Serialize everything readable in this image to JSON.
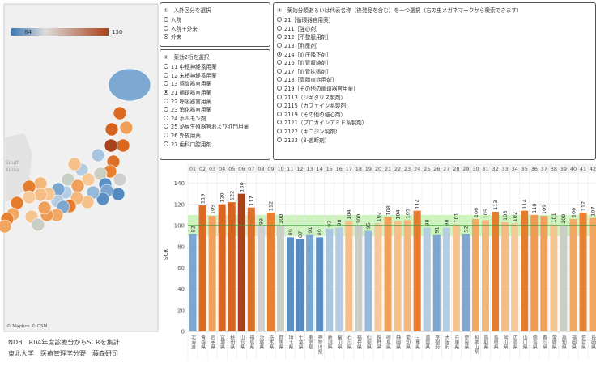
{
  "map": {
    "legend_min": 84,
    "legend_max": 130,
    "attribution": "© Mapbox © OSM",
    "labels": [
      "South",
      "Korea"
    ],
    "caption": [
      "NDB　R04年度診療分からSCRを集計",
      "東北大学　医療管理学分野　藤森研司"
    ]
  },
  "filter1": {
    "title": "①　入外区分を選択",
    "options": [
      "入院",
      "入院＋外来",
      "外来"
    ],
    "selected": 2
  },
  "filter2": {
    "title": "②　薬効2桁を選択",
    "options": [
      "11 中枢神経系用薬",
      "12 末梢神経系用薬",
      "13 感覚器官用薬",
      "21 循環器官用薬",
      "22 呼吸器官用薬",
      "23 消化器官用薬",
      "24 ホルモン剤",
      "25 泌尿生殖器官および肛門用薬",
      "26 外皮用薬",
      "27 歯科口腔用剤"
    ],
    "selected": 3
  },
  "filter3": {
    "title": "③　薬効分類あるいは代表名称（後発品を含む）を一つ選択（右の虫メガネマークから検索できます）",
    "options": [
      "21［循環器官用薬］",
      "211［強心剤］",
      "212［不整脈用剤］",
      "213［利尿剤］",
      "214［血圧降下剤］",
      "216［血管収縮剤］",
      "217［血管拡張剤］",
      "218［高脂血症用剤］",
      "219［その他の循環器官用薬］",
      "2113（ジギタリス製剤）",
      "2115（カフェイン系製剤）",
      "2119（その他の強心剤）",
      "2121（プロカインアミド系製剤）",
      "2122（キニジン製剤）",
      "2123（β-遮断剤）"
    ],
    "selected": 4
  },
  "chart_data": {
    "type": "bar",
    "y_label": "SCR",
    "categories": [
      "01",
      "02",
      "03",
      "04",
      "05",
      "06",
      "07",
      "08",
      "09",
      "10",
      "11",
      "12",
      "13",
      "14",
      "15",
      "16",
      "17",
      "18",
      "19",
      "20",
      "21",
      "22",
      "23",
      "24",
      "25",
      "26",
      "27",
      "28",
      "29",
      "30",
      "31",
      "32",
      "33",
      "34",
      "35",
      "36",
      "37",
      "38",
      "39",
      "40",
      "41",
      "42"
    ],
    "names": [
      "北海道",
      "青森県",
      "岩手県",
      "宮城県",
      "秋田県",
      "山形県",
      "福島県",
      "茨城県",
      "栃木県",
      "群馬県",
      "埼玉県",
      "千葉県",
      "東京都",
      "神奈川県",
      "新潟県",
      "富山県",
      "石川県",
      "福井県",
      "山梨県",
      "長野県",
      "岐阜県",
      "静岡県",
      "愛知県",
      "三重県",
      "滋賀県",
      "京都府",
      "大阪府",
      "兵庫県",
      "奈良県",
      "和歌山県",
      "鳥取県",
      "島根県",
      "岡山県",
      "広島県",
      "山口県",
      "徳島県",
      "香川県",
      "愛媛県",
      "高知県",
      "福岡県",
      "佐賀県",
      "長崎県"
    ],
    "values": [
      92,
      119,
      109,
      120,
      122,
      130,
      117,
      99,
      112,
      100,
      89,
      87,
      91,
      89,
      97,
      98,
      104,
      100,
      95,
      102,
      108,
      104,
      105,
      114,
      98,
      91,
      98,
      101,
      92,
      106,
      105,
      113,
      103,
      102,
      114,
      110,
      109,
      101,
      100,
      106,
      112,
      107
    ],
    "colors": [
      "#7ba7d1",
      "#db6a22",
      "#f0a05a",
      "#d9671f",
      "#d6641e",
      "#a8421a",
      "#de7128",
      "#cfcfcf",
      "#e8802f",
      "#c9cfc4",
      "#5b8fc4",
      "#5289c1",
      "#7aa6d0",
      "#5b8fc4",
      "#a9c6e0",
      "#b4cde3",
      "#f5c08a",
      "#c9cfc4",
      "#97badb",
      "#f7c898",
      "#f0a05a",
      "#f5c08a",
      "#f3b77c",
      "#e57b2c",
      "#b4cde3",
      "#7aa6d0",
      "#b4cde3",
      "#f6c48f",
      "#7ba7d1",
      "#f1a865",
      "#f3b77c",
      "#e67d2d",
      "#f5bc83",
      "#f7c898",
      "#e57b2c",
      "#ee9a50",
      "#f0a05a",
      "#f6c48f",
      "#c9cfc4",
      "#f1a865",
      "#e8802f",
      "#f0a560"
    ],
    "ylim": [
      0,
      145
    ],
    "yticks": [
      0,
      20,
      40,
      60,
      80,
      100,
      120,
      140
    ],
    "grid": true,
    "reference_line": 100,
    "reference_band": [
      90,
      110
    ]
  }
}
